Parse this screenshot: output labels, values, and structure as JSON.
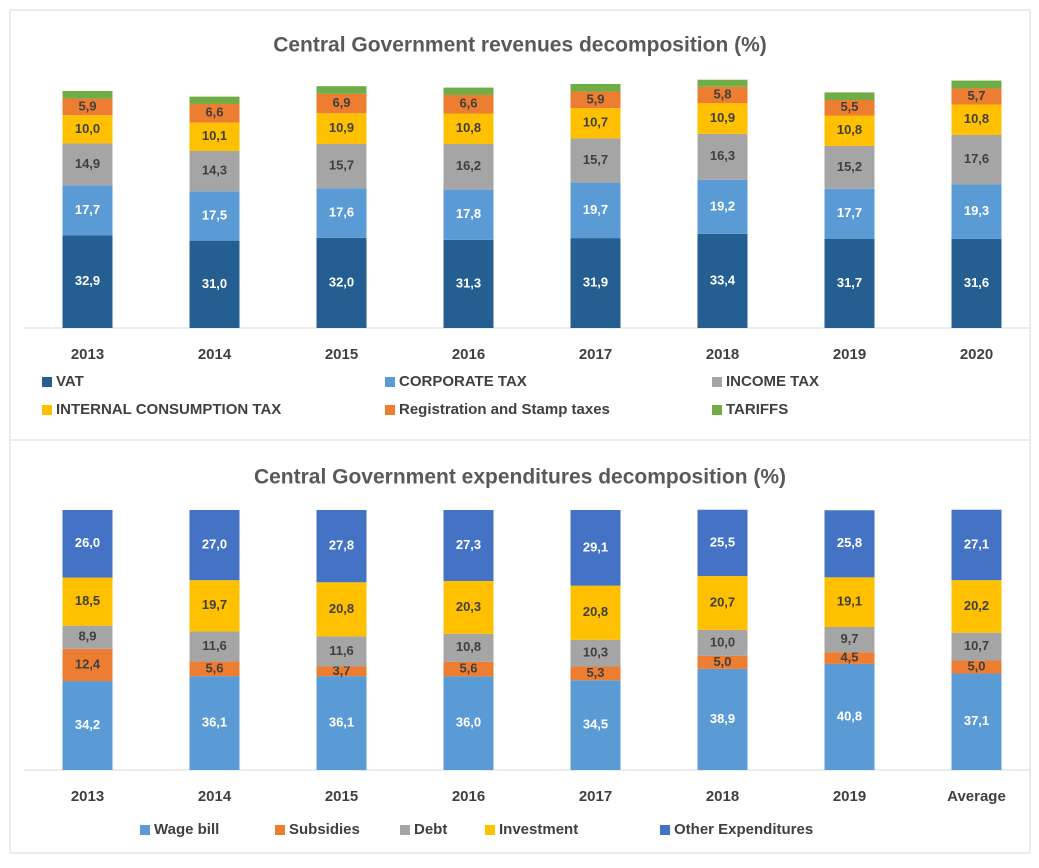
{
  "chart_data": [
    {
      "type": "stacked_bar",
      "title": "Central Government revenues decomposition (%)",
      "categories": [
        "2013",
        "2014",
        "2015",
        "2016",
        "2017",
        "2018",
        "2019",
        "2020"
      ],
      "ylim": [
        0,
        88
      ],
      "series": [
        {
          "name": "VAT",
          "color": "#255e91",
          "values": [
            32.9,
            31.0,
            32.0,
            31.3,
            31.9,
            33.4,
            31.7,
            31.6
          ],
          "value_labels": [
            "32,9",
            "31,0",
            "32,0",
            "31,3",
            "31,9",
            "33,4",
            "31,7",
            "31,6"
          ]
        },
        {
          "name": "CORPORATE TAX",
          "color": "#5b9bd5",
          "values": [
            17.7,
            17.5,
            17.6,
            17.8,
            19.7,
            19.2,
            17.7,
            19.3
          ],
          "value_labels": [
            "17,7",
            "17,5",
            "17,6",
            "17,8",
            "19,7",
            "19,2",
            "17,7",
            "19,3"
          ]
        },
        {
          "name": "INCOME TAX",
          "color": "#a5a5a5",
          "values": [
            14.9,
            14.3,
            15.7,
            16.2,
            15.7,
            16.3,
            15.2,
            17.6
          ],
          "value_labels": [
            "14,9",
            "14,3",
            "15,7",
            "16,2",
            "15,7",
            "16,3",
            "15,2",
            "17,6"
          ]
        },
        {
          "name": "INTERNAL CONSUMPTION TAX",
          "color": "#ffc000",
          "values": [
            10.0,
            10.1,
            10.9,
            10.8,
            10.7,
            10.9,
            10.8,
            10.8
          ],
          "value_labels": [
            "10,0",
            "10,1",
            "10,9",
            "10,8",
            "10,7",
            "10,9",
            "10,8",
            "10,8"
          ]
        },
        {
          "name": "Registration and Stamp taxes",
          "color": "#ed7d31",
          "values": [
            5.9,
            6.6,
            6.9,
            6.6,
            5.9,
            5.8,
            5.5,
            5.7
          ],
          "value_labels": [
            "5,9",
            "6,6",
            "6,9",
            "6,6",
            "5,9",
            "5,8",
            "5,5",
            "5,7"
          ]
        },
        {
          "name": "TARIFFS",
          "color": "#70ad47",
          "values": [
            2.7,
            2.6,
            2.7,
            2.6,
            2.7,
            2.5,
            2.7,
            2.8
          ]
        }
      ]
    },
    {
      "type": "stacked_bar",
      "title": "Central Government expenditures decomposition (%)",
      "categories": [
        "2013",
        "2014",
        "2015",
        "2016",
        "2017",
        "2018",
        "2019",
        "Average"
      ],
      "ylim": [
        0,
        100
      ],
      "series": [
        {
          "name": "Wage bill",
          "color": "#5b9bd5",
          "values": [
            34.2,
            36.1,
            36.1,
            36.0,
            34.5,
            38.9,
            40.8,
            37.1
          ],
          "value_labels": [
            "34,2",
            "36,1",
            "36,1",
            "36,0",
            "34,5",
            "38,9",
            "40,8",
            "37,1"
          ]
        },
        {
          "name": "Subsidies",
          "color": "#ed7d31",
          "values": [
            12.4,
            5.6,
            3.7,
            5.6,
            5.3,
            5.0,
            4.5,
            5.0
          ],
          "value_labels": [
            "12,4",
            "5,6",
            "3,7",
            "5,6",
            "5,3",
            "5,0",
            "4,5",
            "5,0"
          ]
        },
        {
          "name": "Debt",
          "color": "#a5a5a5",
          "values": [
            8.9,
            11.6,
            11.6,
            10.8,
            10.3,
            10.0,
            9.7,
            10.7
          ],
          "value_labels": [
            "8,9",
            "11,6",
            "11,6",
            "10,8",
            "10,3",
            "10,0",
            "9,7",
            "10,7"
          ]
        },
        {
          "name": "Investment",
          "color": "#ffc000",
          "values": [
            18.5,
            19.7,
            20.8,
            20.3,
            20.8,
            20.7,
            19.1,
            20.2
          ],
          "value_labels": [
            "18,5",
            "19,7",
            "20,8",
            "20,3",
            "20,8",
            "20,7",
            "19,1",
            "20,2"
          ]
        },
        {
          "name": "Other Expenditures",
          "color": "#4472c4",
          "values": [
            26.0,
            27.0,
            27.8,
            27.3,
            29.1,
            25.5,
            25.8,
            27.1
          ],
          "value_labels": [
            "26,0",
            "27,0",
            "27,8",
            "27,3",
            "29,1",
            "25,5",
            "25,8",
            "27,1"
          ]
        }
      ]
    }
  ]
}
